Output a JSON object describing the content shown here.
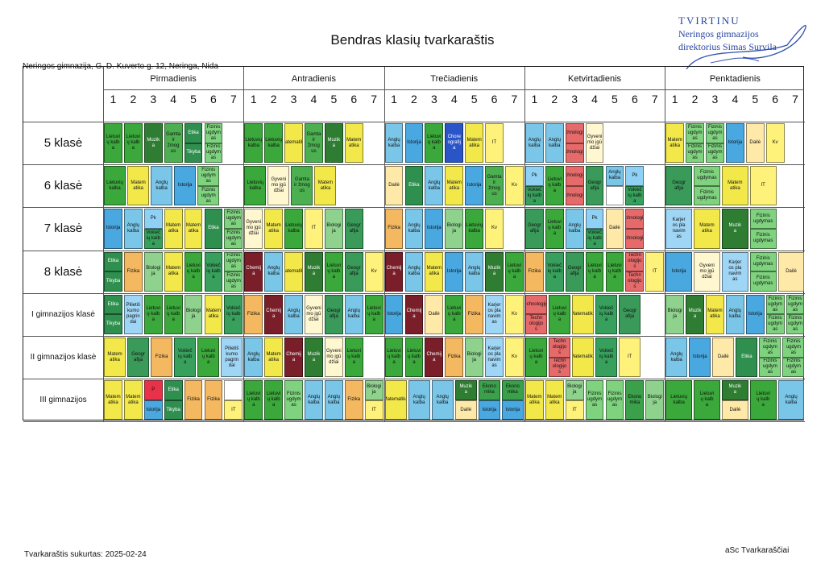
{
  "approval": {
    "title": "TVIRTINU",
    "line1": "Neringos gimnazijos",
    "line2": "direktorius Simas Survila"
  },
  "title": "Bendras klasių tvarkaraštis",
  "school": "Neringos gimnazija, G. D. Kuverto g. 12, Neringa, Nida",
  "days": [
    "Pirmadienis",
    "Antradienis",
    "Trečiadienis",
    "Ketvirtadienis",
    "Penktadienis"
  ],
  "periods": [
    "1",
    "2",
    "3",
    "4",
    "5",
    "6",
    "7"
  ],
  "classes": [
    "5 klasė",
    "6 klasė",
    "7 klasė",
    "8 klasė",
    "I gimnazijos klasė",
    "II gimnazijos klasė",
    "III gimnazijos"
  ],
  "lessons": [
    [
      [
        "Lietuvi\nų kalb\na",
        "Lietuvi\nų kalb\na",
        "Muzik\na",
        "Gamta\nir žmog\nus",
        {
          "top": "Etika",
          "bottom": "Tikyba"
        },
        {
          "top": "Fizinis\nugdym\nas",
          "bottom": "Fizinis\nugdym\nas"
        },
        ""
      ],
      [
        "Lietuvių kalba",
        "Lietuvių kalba",
        "Matematika",
        "Gamta\nir žmog\nus",
        "Muzik\na",
        "Matem\natika",
        "",
        ""
      ],
      [
        "Anglų\nkalba",
        "Istorija",
        "Lietuvi\nų kalb\na",
        "Chore\nografij\na",
        "Matem\natika",
        "IT",
        ""
      ],
      [
        "Anglų\nkalba",
        "Anglų\nkalba",
        {
          "top": "Technologijos",
          "bottom": "Technologijos"
        },
        "Gyveni\nmo įgū\ndžiai",
        "",
        "",
        ""
      ],
      [
        "Matem\natika",
        {
          "top": "Fizinis\nugdym\nas",
          "bottom": "Fizinis\nugdym\nas"
        },
        {
          "top": "Fizinis\nugdym\nas",
          "bottom": "Fizinis\nugdym\nas"
        },
        "Istorija",
        "Dailė",
        "Kv",
        ""
      ]
    ],
    [
      [
        "Lietuvių kalba",
        "Matem\natika",
        "Anglų\nkalba",
        "Istorija",
        {
          "top": "Fizinis\nugdym\nas",
          "bottom": "Fizinis\nugdym\nas"
        },
        ""
      ],
      [
        "Lietuvių kalba",
        "Gyveni\nmo įgū\ndžiai",
        "Gamta\nir žmog\nus",
        "Matem\natika",
        "",
        ""
      ],
      [
        "Dailė",
        "Etika",
        "Anglų\nkalba",
        "Matem\natika",
        "Istorija",
        "Gamta\nir žmog\nus",
        "Kv"
      ],
      [
        {
          "top": "Pk",
          "bottom": "Vokieč\nių kalb\na"
        },
        "Lietuvi\nų kalb\na",
        {
          "top": "Technologijos",
          "bottom": "Technologijos"
        },
        "Geogr\nafija",
        {
          "top": "Anglų\nkalba",
          "bottom": ""
        },
        {
          "top": "Pk",
          "bottom": "Vokieč\nių kalb\na"
        },
        ""
      ],
      [
        "Geogr\nafija",
        {
          "top": "Fizinis ugdymas",
          "bottom": "Fizinis ugdymas"
        },
        "Matem\natika",
        "IT",
        ""
      ]
    ],
    [
      [
        "Istorija",
        "Anglų\nkalba",
        {
          "top": "Pk",
          "bottom": "Vokieč\nių kalb\na"
        },
        "Matem\natika",
        "Matem\natika",
        "Etika",
        {
          "top": "Fizinis\nugdym\nas",
          "bottom": "Fizinis\nugdym\nas"
        }
      ],
      [
        "Gyveni\nmo įgū\ndžiai",
        "Matem\natika",
        "Lietuvių kalba",
        "IT",
        "Biologi\nja",
        "Geogr\nafija",
        ""
      ],
      [
        "Fizika",
        "Anglų\nkalba",
        "Istorija",
        "Biologi\nja",
        "Lietuvių kalba",
        "Kv",
        ""
      ],
      [
        "Geogr\nafija",
        "Lietuvi\nų kalb\na",
        "Anglų\nkalba",
        {
          "top": "Pk",
          "bottom": "Vokieč\nių kalb\na"
        },
        "Dailė",
        {
          "top": "Technologijos",
          "bottom": "Technologijos"
        },
        ""
      ],
      [
        "Karjer\nos pla\nnavim\nas",
        "Matem\natika",
        "Muzik\na",
        {
          "top": "Fizinis\nugdymas",
          "bottom": "Fizinis\nugdymas"
        },
        ""
      ]
    ],
    [
      [
        {
          "top": "Etika",
          "bottom": "Tikyba"
        },
        "Fizika",
        "Biologi\nja",
        "Matem\natika",
        "Lietuvi\nų kalb\na",
        "Vokieč\nių kalb\na",
        {
          "top": "Fizinis\nugdym\nas",
          "bottom": "Fizinis\nugdym\nas"
        }
      ],
      [
        "Chemij\na",
        "Anglų\nkalba",
        "Matematika",
        "Muzik\na",
        "Lietuvi\nų kalb\na",
        "Geogr\nafija",
        "Kv"
      ],
      [
        "Chemij\na",
        "Anglų\nkalba",
        "Matem\natika",
        "Istorija",
        "Anglų\nkalba",
        "Muzik\na",
        "Lietuvi\nų kalb\na"
      ],
      [
        "Fizika",
        "Vokieč\nių kalb\na",
        "Geogr\nafija",
        "Lietuvi\nų kalb\na",
        "Lietuvi\nų kalb\na",
        {
          "top": "Techn\nologijo\ns",
          "bottom": "Techn\nologijo\ns"
        },
        "IT"
      ],
      [
        "Istorija",
        "Gyveni\nmo įgū\ndžiai",
        "Karjer\nos pla\nnavim\nas",
        {
          "top": "Fizinis\nugdymas",
          "bottom": "Fizinis\nugdymas"
        },
        "Dailė"
      ]
    ],
    [
      [
        {
          "top": "Etika",
          "bottom": "Tikyba"
        },
        "Pilietiš\nkumo\npagrin\ndai",
        "Lietuvi\nų kalb\na",
        "Lietuvi\nų kalb\na",
        "Biologi\nja",
        "Matem\natika",
        "Vokieč\nių kalb\na"
      ],
      [
        "Fizika",
        "Chemij\na",
        "Anglų\nkalba",
        "Gyveni\nmo įgū\ndžiai",
        "Geogr\nafija",
        "Anglų\nkalba",
        "Lietuvi\nų kalb\na"
      ],
      [
        "Istorija",
        "Chemij\na",
        "Dailė",
        "Lietuvi\nų kalb\na",
        "Fizika",
        "Karjer\nos pla\nnavim\nas",
        "Kv"
      ],
      [
        {
          "top": "Technologijos",
          "bottom": "Techn\nologijo\ns"
        },
        "Lietuvi\nų kalb\na",
        "Matematika",
        "Vokieč\nių kalb\na",
        "Geogr\nafija",
        ""
      ],
      [
        "Biologi\nja",
        "Muzik\na",
        "Matem\natika",
        "Anglų\nkalba",
        "Istorija",
        {
          "top": "Fizinis\nugdym\nas",
          "bottom": "Fizinis\nugdym\nas"
        },
        {
          "top": "Fizinis\nugdym\nas",
          "bottom": "Fizinis\nugdym\nas"
        }
      ]
    ],
    [
      [
        "Matem\natika",
        "Geogr\nafija",
        "Fizika",
        "Vokieč\nių kalb\na",
        "Lietuvi\nų kalb\na",
        "Pilietiš\nkumo\npagrin\ndai"
      ],
      [
        "Anglų\nkalba",
        "Matem\natika",
        "Chemij\na",
        "Muzik\na",
        "Gyveni\nmo įgū\ndžiai",
        "Lietuvi\nų kalb\na",
        ""
      ],
      [
        "Lietuvi\nų kalb\na",
        "Lietuvi\nų kalb\na",
        "Chemij\na",
        "Fizika",
        "Biologi\nja",
        "Karjer\nos pla\nnavim\nas",
        "Kv"
      ],
      [
        "Lietuvi\nų kalb\na",
        {
          "top": "Techn\nologijo\ns",
          "bottom": "Techn\nologijo\ns"
        },
        "Matematika",
        "Vokieč\nių kalb\na",
        "IT",
        ""
      ],
      [
        "Anglų kalba",
        "Istorija",
        "Dailė",
        "Etika",
        {
          "top": "Fizinis\nugdym\nas",
          "bottom": "Fizinis\nugdym\nas"
        },
        {
          "top": "Fizinis\nugdym\nas",
          "bottom": "Fizinis\nugdym\nas"
        }
      ]
    ],
    [
      [
        "Matem\natika",
        "Matem\natika",
        {
          "top": "P",
          "bottom": "Istorija"
        },
        {
          "top": "Etika",
          "bottom": "Tikyba"
        },
        "Fizika",
        "Fizika",
        {
          "top": "",
          "bottom": "IT"
        }
      ],
      [
        "Lietuvi\nų kalb\na",
        "Lietuvi\nų kalb\na",
        "Fizinis\nugdym\nas",
        "Anglų\nkalba",
        "Anglų\nkalba",
        "Fizika",
        {
          "top": "Biologi\nja",
          "bottom": "IT"
        }
      ],
      [
        "Matematika",
        "Anglų\nkalba",
        "Anglų\nkalba",
        {
          "top": "Muzik\na",
          "bottom": "Dailė"
        },
        {
          "top": "Ekono\nmika",
          "bottom": "Istorija"
        },
        {
          "top": "Ekono\nmika",
          "bottom": "Istorija"
        }
      ],
      [
        "Matem\natika",
        "Matem\natika",
        {
          "top": "Biologi\nja",
          "bottom": "IT"
        },
        "Fizinis\nugdym\nas",
        "Fizinis\nugdym\nas",
        "Ekono\nmika",
        "Biologi\nja"
      ],
      [
        "Lietuvių kalba",
        "Lietuvi\nų kalb\na",
        {
          "top": "Muzik\na",
          "bottom": "Dailė"
        },
        "Lietuvi\nų kalb\na",
        "Anglų\nkalba"
      ]
    ]
  ],
  "footer": {
    "created": "Tvarkaraštis sukurtas: 2025-02-24",
    "brand": "aSc Tvarkaraščiai"
  }
}
